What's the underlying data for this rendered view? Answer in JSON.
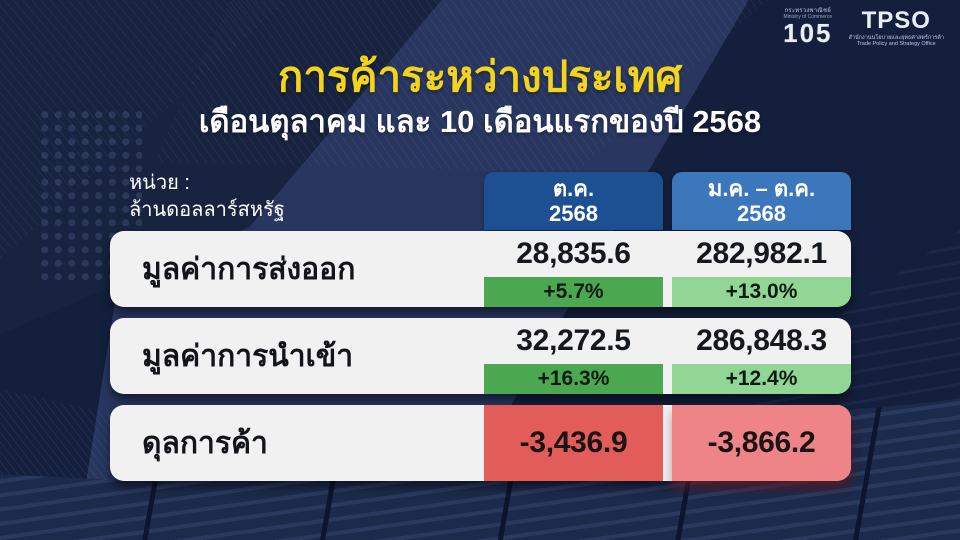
{
  "slide": {
    "title": "การค้าระหว่างประเทศ",
    "subtitle": "เดือนตุลาคม และ 10 เดือนแรกของปี 2568"
  },
  "logos": {
    "ministry_thai": "กระทรวงพาณิชย์",
    "ministry_eng": "Ministry of Commerce",
    "anniversary_number": "105",
    "tpso_acronym": "TPSO",
    "tpso_thai": "สำนักงานนโยบายและยุทธศาสตร์การค้า",
    "tpso_eng": "Trade Policy and Strategy Office"
  },
  "table": {
    "unit_line1": "หน่วย :",
    "unit_line2": "ล้านดอลลาร์สหรัฐ",
    "columns": [
      {
        "line1": "ต.ค.",
        "line2": "2568"
      },
      {
        "line1": "ม.ค. – ต.ค.",
        "line2": "2568"
      }
    ],
    "rows": [
      {
        "label": "มูลค่าการส่งออก",
        "values": [
          "28,835.6",
          "282,982.1"
        ],
        "changes": [
          "+5.7%",
          "+13.0%"
        ]
      },
      {
        "label": "มูลค่าการนำเข้า",
        "values": [
          "32,272.5",
          "286,848.3"
        ],
        "changes": [
          "+16.3%",
          "+12.4%"
        ]
      },
      {
        "label": "ดุลการค้า",
        "values": [
          "-3,436.9",
          "-3,866.2"
        ],
        "changes": []
      }
    ]
  },
  "colors": {
    "background_navy": "#141F3D",
    "band_navy": "#283660",
    "title_yellow": "#F3D41C",
    "header_blue_dark": "#1D4F93",
    "header_blue_light": "#3C76BB",
    "row_white": "#F1F1F2",
    "green_dark": "#4BA750",
    "green_light": "#92D695",
    "red": "#E25D59",
    "red_light": "#EE8487"
  },
  "chart_data": {
    "type": "table",
    "title": "การค้าระหว่างประเทศ",
    "subtitle": "เดือนตุลาคม และ 10 เดือนแรกของปี 2568",
    "unit": "ล้านดอลลาร์สหรัฐ",
    "columns": [
      "ต.ค. 2568",
      "ม.ค. – ต.ค. 2568"
    ],
    "rows": [
      {
        "label": "มูลค่าการส่งออก",
        "oct_2568": 28835.6,
        "oct_2568_change_pct": 5.7,
        "jan_oct_2568": 282982.1,
        "jan_oct_2568_change_pct": 13.0
      },
      {
        "label": "มูลค่าการนำเข้า",
        "oct_2568": 32272.5,
        "oct_2568_change_pct": 16.3,
        "jan_oct_2568": 286848.3,
        "jan_oct_2568_change_pct": 12.4
      },
      {
        "label": "ดุลการค้า",
        "oct_2568": -3436.9,
        "jan_oct_2568": -3866.2
      }
    ]
  }
}
